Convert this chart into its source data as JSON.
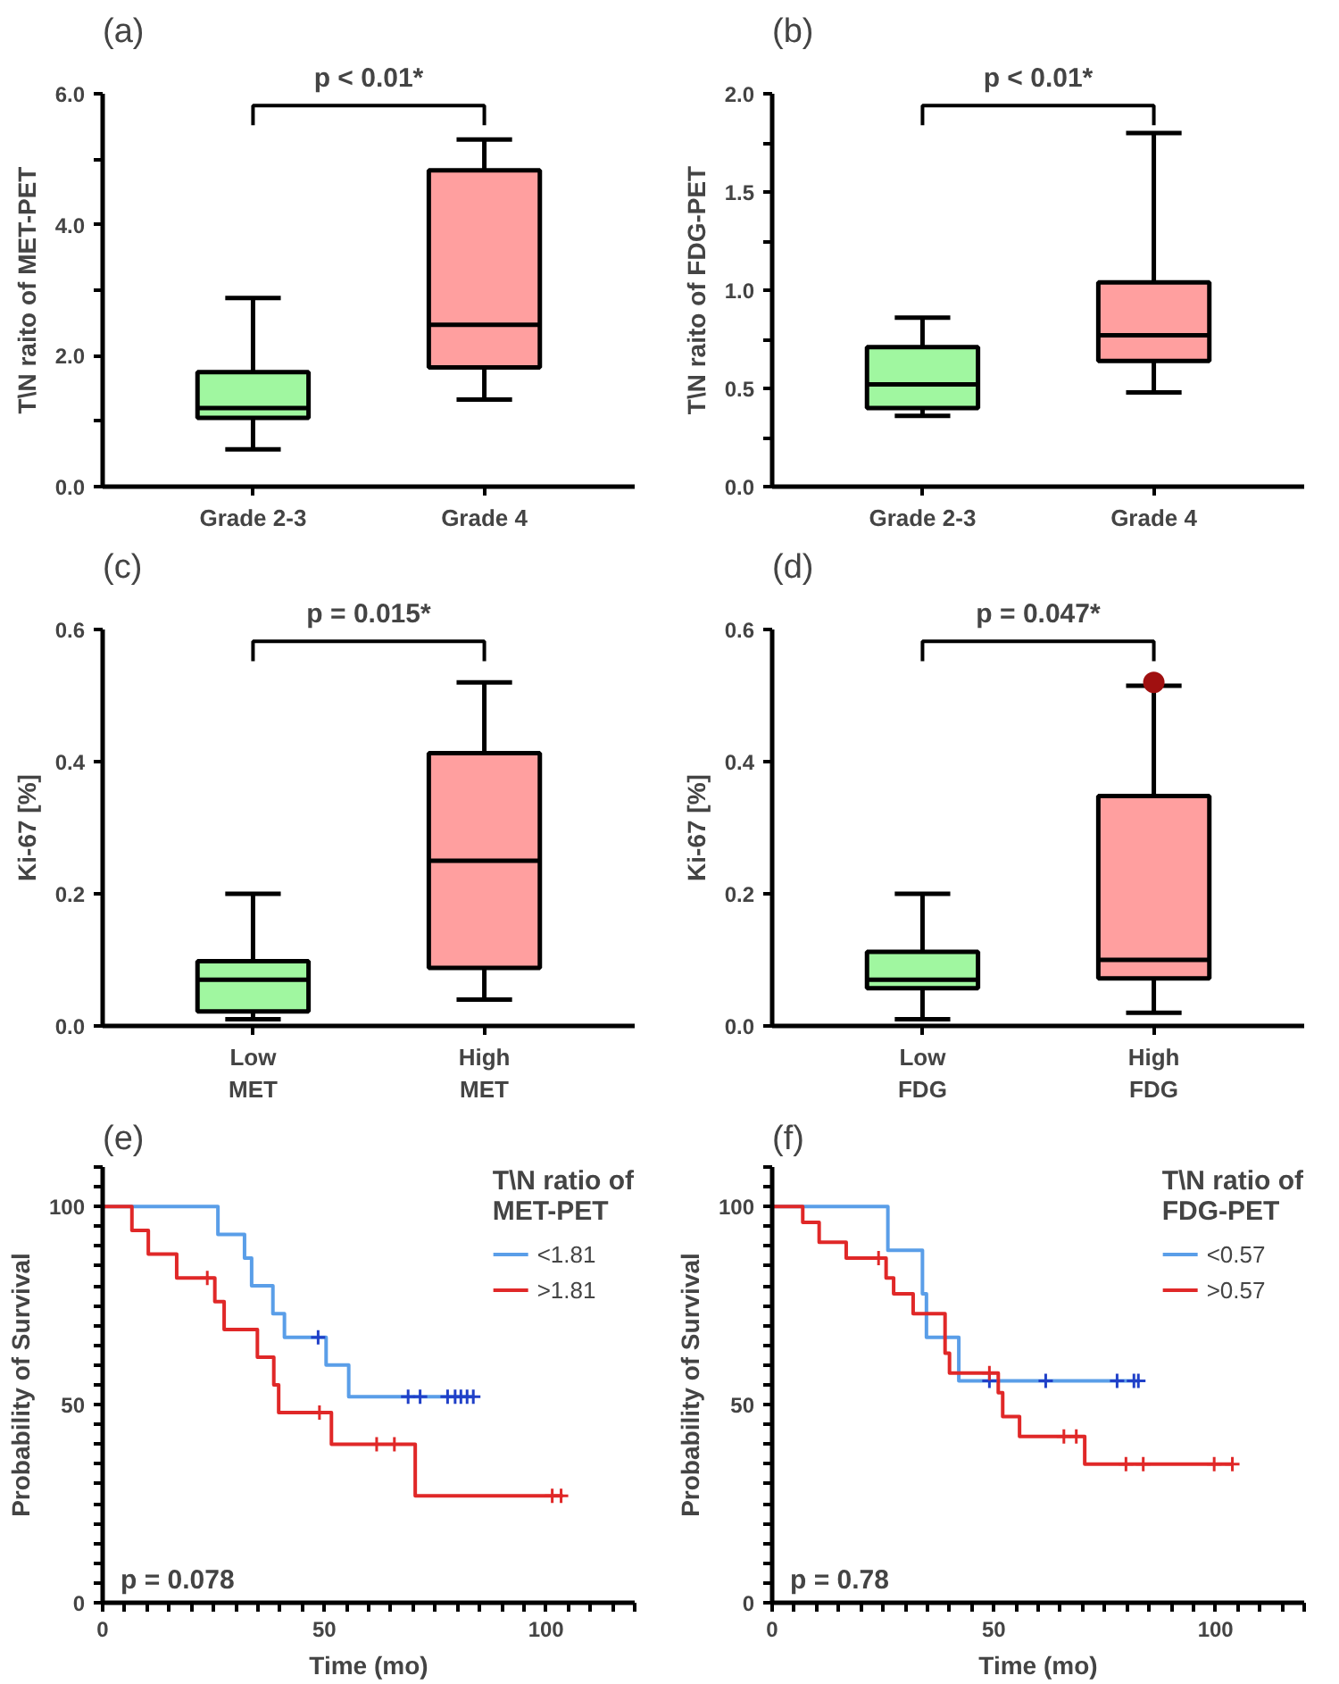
{
  "chart_data": [
    {
      "type": "box",
      "title": "(a)",
      "ylabel": "T\\N raito of MET-PET",
      "categories": [
        "Grade 2-3",
        "Grade 4"
      ],
      "colors": [
        "#a0f7a0",
        "#ff9f9f"
      ],
      "boxes": [
        {
          "low": 0.57,
          "q1": 1.05,
          "median": 1.2,
          "q3": 1.75,
          "high": 2.88
        },
        {
          "low": 1.33,
          "q1": 1.82,
          "median": 2.47,
          "q3": 4.83,
          "high": 5.3
        }
      ],
      "ylim": [
        0,
        6
      ],
      "yticks": [
        {
          "value": 0,
          "label": "0.0"
        },
        {
          "value": 1,
          "label": null
        },
        {
          "value": 2,
          "label": "2.0"
        },
        {
          "value": 3,
          "label": null
        },
        {
          "value": 4,
          "label": "4.0"
        },
        {
          "value": 5,
          "label": null
        },
        {
          "value": 6,
          "label": "6.0"
        }
      ],
      "annotations": [
        "p < 0.01*"
      ]
    },
    {
      "type": "box",
      "title": "(b)",
      "ylabel": "T\\N raito of FDG-PET",
      "categories": [
        "Grade 2-3",
        "Grade 4"
      ],
      "colors": [
        "#a0f7a0",
        "#ff9f9f"
      ],
      "boxes": [
        {
          "low": 0.36,
          "q1": 0.4,
          "median": 0.52,
          "q3": 0.71,
          "high": 0.86
        },
        {
          "low": 0.48,
          "q1": 0.64,
          "median": 0.77,
          "q3": 1.04,
          "high": 1.8
        }
      ],
      "ylim": [
        0,
        2
      ],
      "yticks": [
        {
          "value": 0,
          "label": "0.0"
        },
        {
          "value": 0.25,
          "label": null
        },
        0.5,
        {
          "value": 0.75,
          "label": null
        },
        {
          "value": 1,
          "label": "1.0"
        },
        {
          "value": 1.25,
          "label": null
        },
        1.5,
        {
          "value": 1.75,
          "label": null
        },
        {
          "value": 2,
          "label": "2.0"
        }
      ],
      "annotations": [
        "p < 0.01*"
      ]
    },
    {
      "type": "box",
      "title": "(c)",
      "ylabel": "Ki-67 [%]",
      "categories": [
        "Low\nMET",
        "High\nMET"
      ],
      "colors": [
        "#a0f7a0",
        "#ff9f9f"
      ],
      "boxes": [
        {
          "low": 0.01,
          "q1": 0.022,
          "median": 0.07,
          "q3": 0.098,
          "high": 0.2
        },
        {
          "low": 0.04,
          "q1": 0.088,
          "median": 0.25,
          "q3": 0.413,
          "high": 0.52
        }
      ],
      "ylim": [
        0,
        0.6
      ],
      "yticks": [
        {
          "value": 0,
          "label": "0.0"
        },
        0.2,
        0.4,
        0.6
      ],
      "annotations": [
        "p = 0.015*"
      ]
    },
    {
      "type": "box",
      "title": "(d)",
      "ylabel": "Ki-67 [%]",
      "categories": [
        "Low\nFDG",
        "High\nFDG"
      ],
      "colors": [
        "#a0f7a0",
        "#ff9f9f"
      ],
      "boxes": [
        {
          "low": 0.01,
          "q1": 0.057,
          "median": 0.07,
          "q3": 0.112,
          "high": 0.2
        },
        {
          "low": 0.02,
          "q1": 0.072,
          "median": 0.1,
          "q3": 0.348,
          "high": 0.515,
          "outliers": [
            0.52
          ]
        }
      ],
      "ylim": [
        0,
        0.6
      ],
      "yticks": [
        {
          "value": 0,
          "label": "0.0"
        },
        0.2,
        0.4,
        0.6
      ],
      "annotations": [
        "p = 0.047*"
      ]
    },
    {
      "type": "step",
      "title": "(e)",
      "xlabel": "Time (mo)",
      "ylabel": "Probability of Survival",
      "legend_title": "T\\N ratio of\nMET-PET",
      "legend": "top right",
      "series": [
        {
          "name": "<1.81",
          "color": "#5a9ee8",
          "x": [
            0,
            26,
            32,
            33.6,
            38.4,
            41,
            50.4,
            55.5,
            83.8
          ],
          "values": [
            100,
            93,
            87,
            80,
            73,
            67,
            60,
            52,
            52
          ]
        },
        {
          "name": ">1.81",
          "color": "#e02828",
          "x": [
            0,
            6.6,
            10.3,
            16.7,
            25.3,
            27.4,
            34.9,
            38.6,
            39.7,
            51.6,
            70.5,
            103.8
          ],
          "values": [
            100,
            94,
            88,
            82,
            76,
            69,
            62,
            55,
            48,
            40,
            27,
            27
          ]
        },
        {
          "type": "scatter",
          "marker": "cross",
          "color": "#2040c8",
          "x": [
            48.6,
            68.9,
            71.6,
            77.8,
            79.5,
            80.8,
            82.2,
            83.6
          ],
          "values": [
            67,
            52,
            52,
            52,
            52,
            52,
            52,
            52
          ]
        },
        {
          "type": "scatter",
          "marker": "cross",
          "color": "#e02828",
          "x": [
            23.6,
            48.9,
            61.8,
            65.8,
            101.4,
            103.4
          ],
          "values": [
            82,
            48,
            40,
            40,
            27,
            27
          ]
        }
      ],
      "xlim": [
        0,
        120
      ],
      "ylim": [
        0,
        110
      ],
      "xticks": [
        0,
        {
          "value": 5,
          "label": null
        },
        {
          "value": 10,
          "label": null
        },
        {
          "value": 15,
          "label": null
        },
        {
          "value": 20,
          "label": null
        },
        {
          "value": 25,
          "label": null
        },
        {
          "value": 30,
          "label": null
        },
        {
          "value": 35,
          "label": null
        },
        {
          "value": 40,
          "label": null
        },
        {
          "value": 45,
          "label": null
        },
        50,
        {
          "value": 55,
          "label": null
        },
        {
          "value": 60,
          "label": null
        },
        {
          "value": 65,
          "label": null
        },
        {
          "value": 70,
          "label": null
        },
        {
          "value": 75,
          "label": null
        },
        {
          "value": 80,
          "label": null
        },
        {
          "value": 85,
          "label": null
        },
        {
          "value": 90,
          "label": null
        },
        {
          "value": 95,
          "label": null
        },
        100,
        {
          "value": 105,
          "label": null
        },
        {
          "value": 110,
          "label": null
        },
        {
          "value": 115,
          "label": null
        },
        {
          "value": 120,
          "label": null
        }
      ],
      "yticks": [
        0,
        {
          "value": 5,
          "label": null
        },
        {
          "value": 10,
          "label": null
        },
        {
          "value": 15,
          "label": null
        },
        {
          "value": 20,
          "label": null
        },
        {
          "value": 25,
          "label": null
        },
        {
          "value": 30,
          "label": null
        },
        {
          "value": 35,
          "label": null
        },
        {
          "value": 40,
          "label": null
        },
        {
          "value": 45,
          "label": null
        },
        50,
        {
          "value": 55,
          "label": null
        },
        {
          "value": 60,
          "label": null
        },
        {
          "value": 65,
          "label": null
        },
        {
          "value": 70,
          "label": null
        },
        {
          "value": 75,
          "label": null
        },
        {
          "value": 80,
          "label": null
        },
        {
          "value": 85,
          "label": null
        },
        {
          "value": 90,
          "label": null
        },
        {
          "value": 95,
          "label": null
        },
        100,
        {
          "value": 105,
          "label": null
        },
        {
          "value": 110,
          "label": null
        }
      ],
      "annotations": [
        "p = 0.078"
      ]
    },
    {
      "type": "step",
      "title": "(f)",
      "xlabel": "Time (mo)",
      "ylabel": "Probability of Survival",
      "legend_title": "T\\N ratio of\nFDG-PET",
      "legend": "top right",
      "series": [
        {
          "name": "<0.57",
          "color": "#5a9ee8",
          "x": [
            0,
            26.1,
            33.9,
            34.8,
            42.1,
            82.9
          ],
          "values": [
            100,
            89,
            78,
            67,
            56,
            56
          ]
        },
        {
          "name": ">0.57",
          "color": "#e02828",
          "x": [
            0,
            6.9,
            10.6,
            16.7,
            25.7,
            27.4,
            31.8,
            39,
            40,
            51,
            52,
            55.8,
            70.5,
            103.8
          ],
          "values": [
            100,
            96,
            91,
            87,
            82,
            78,
            73,
            63,
            58,
            53,
            47,
            42,
            35,
            35
          ]
        },
        {
          "type": "scatter",
          "marker": "cross",
          "color": "#2040c8",
          "x": [
            49,
            61.7,
            77.8,
            81.6,
            82.6
          ],
          "values": [
            56,
            56,
            56,
            56,
            56
          ]
        },
        {
          "type": "scatter",
          "marker": "cross",
          "color": "#e02828",
          "x": [
            24,
            49,
            65.8,
            68.6,
            79.8,
            83.7,
            99.7,
            103.8
          ],
          "values": [
            87,
            58,
            42,
            42,
            35,
            35,
            35,
            35
          ]
        }
      ],
      "xlim": [
        0,
        120
      ],
      "ylim": [
        0,
        110
      ],
      "xticks": [
        0,
        {
          "value": 5,
          "label": null
        },
        {
          "value": 10,
          "label": null
        },
        {
          "value": 15,
          "label": null
        },
        {
          "value": 20,
          "label": null
        },
        {
          "value": 25,
          "label": null
        },
        {
          "value": 30,
          "label": null
        },
        {
          "value": 35,
          "label": null
        },
        {
          "value": 40,
          "label": null
        },
        {
          "value": 45,
          "label": null
        },
        50,
        {
          "value": 55,
          "label": null
        },
        {
          "value": 60,
          "label": null
        },
        {
          "value": 65,
          "label": null
        },
        {
          "value": 70,
          "label": null
        },
        {
          "value": 75,
          "label": null
        },
        {
          "value": 80,
          "label": null
        },
        {
          "value": 85,
          "label": null
        },
        {
          "value": 90,
          "label": null
        },
        {
          "value": 95,
          "label": null
        },
        100,
        {
          "value": 105,
          "label": null
        },
        {
          "value": 110,
          "label": null
        },
        {
          "value": 115,
          "label": null
        },
        {
          "value": 120,
          "label": null
        }
      ],
      "yticks": [
        0,
        {
          "value": 5,
          "label": null
        },
        {
          "value": 10,
          "label": null
        },
        {
          "value": 15,
          "label": null
        },
        {
          "value": 20,
          "label": null
        },
        {
          "value": 25,
          "label": null
        },
        {
          "value": 30,
          "label": null
        },
        {
          "value": 35,
          "label": null
        },
        {
          "value": 40,
          "label": null
        },
        {
          "value": 45,
          "label": null
        },
        50,
        {
          "value": 55,
          "label": null
        },
        {
          "value": 60,
          "label": null
        },
        {
          "value": 65,
          "label": null
        },
        {
          "value": 70,
          "label": null
        },
        {
          "value": 75,
          "label": null
        },
        {
          "value": 80,
          "label": null
        },
        {
          "value": 85,
          "label": null
        },
        {
          "value": 90,
          "label": null
        },
        {
          "value": 95,
          "label": null
        },
        100,
        {
          "value": 105,
          "label": null
        },
        {
          "value": 110,
          "label": null
        }
      ],
      "annotations": [
        "p = 0.78"
      ]
    }
  ]
}
